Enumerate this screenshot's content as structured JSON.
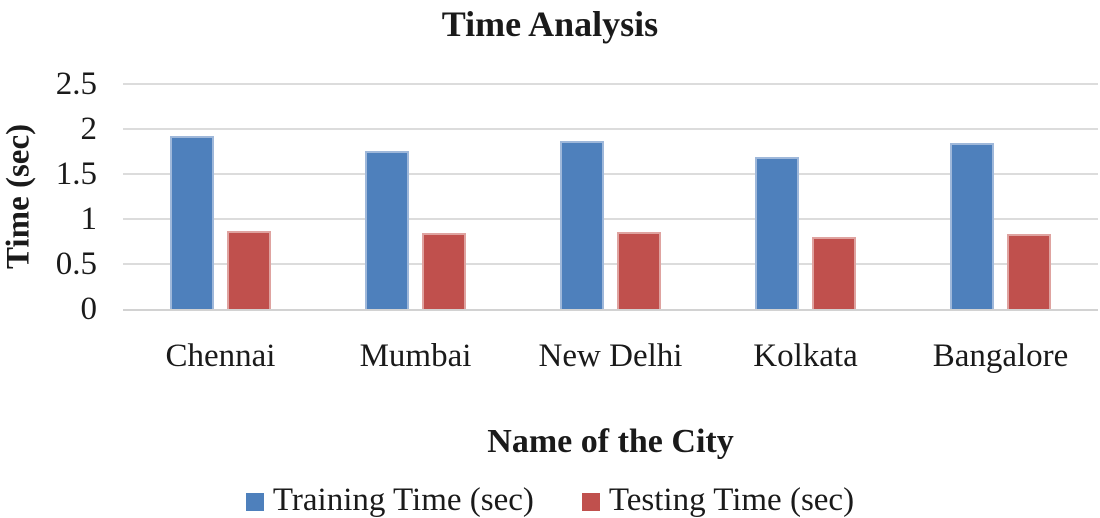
{
  "chart_data": {
    "type": "bar",
    "title": "Time Analysis",
    "xlabel": "Name of the City",
    "ylabel": "Time (sec)",
    "categories": [
      "Chennai",
      "Mumbai",
      "New Delhi",
      "Kolkata",
      "Bangalore"
    ],
    "series": [
      {
        "name": "Training Time (sec)",
        "color": "#4E80BC",
        "border_color": "#9FB8DA",
        "values": [
          1.92,
          1.76,
          1.87,
          1.69,
          1.84
        ]
      },
      {
        "name": "Testing Time (sec)",
        "color": "#C0504D",
        "border_color": "#DFA3A0",
        "values": [
          0.87,
          0.84,
          0.86,
          0.8,
          0.83
        ]
      }
    ],
    "ylim": [
      0,
      2.5
    ],
    "ytick_step": 0.5,
    "yticks": [
      "0",
      "0.5",
      "1",
      "1.5",
      "2",
      "2.5"
    ],
    "grid": true,
    "gridline_color": "#DCDCDC",
    "axis_line_color": "#D2D2D2",
    "text_color": "#1a1a1a",
    "legend_position": "bottom"
  }
}
